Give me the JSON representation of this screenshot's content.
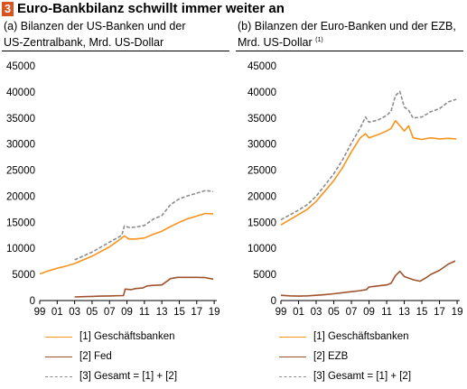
{
  "figure": {
    "number": "3",
    "title": "Euro-Bankbilanz schwillt immer weiter an"
  },
  "colors": {
    "accent": "#d9531e",
    "banks": "#f7941d",
    "central": "#a0522d",
    "total": "#8c8c8c"
  },
  "chart_data": [
    {
      "type": "line",
      "subtitle_line1": "(a) Bilanzen der US-Banken und der",
      "subtitle_line2": "US-Zentralbank, Mrd. US-Dollar",
      "note": "",
      "ylim": [
        0,
        45000
      ],
      "yticks": [
        "0",
        "5000",
        "10000",
        "15000",
        "20000",
        "25000",
        "30000",
        "35000",
        "40000",
        "45000"
      ],
      "xlim": [
        1999,
        2019.3
      ],
      "xticks": [
        "99",
        "01",
        "03",
        "05",
        "07",
        "09",
        "11",
        "13",
        "15",
        "17",
        "19"
      ],
      "series": [
        {
          "name": "[1] Geschäftsbanken",
          "style": "solid",
          "color": "#f7941d",
          "points": [
            [
              1999,
              5100
            ],
            [
              2000,
              5700
            ],
            [
              2001,
              6200
            ],
            [
              2002,
              6600
            ],
            [
              2003,
              7100
            ],
            [
              2004,
              7800
            ],
            [
              2005,
              8500
            ],
            [
              2006,
              9400
            ],
            [
              2007,
              10300
            ],
            [
              2008,
              11500
            ],
            [
              2008.7,
              12400
            ],
            [
              2009.2,
              11800
            ],
            [
              2010,
              11800
            ],
            [
              2011,
              12000
            ],
            [
              2012,
              12700
            ],
            [
              2013,
              13300
            ],
            [
              2014,
              14200
            ],
            [
              2015,
              15000
            ],
            [
              2016,
              15700
            ],
            [
              2017,
              16200
            ],
            [
              2018,
              16700
            ],
            [
              2018.9,
              16600
            ]
          ]
        },
        {
          "name": "[2] Fed",
          "style": "solid",
          "color": "#a0522d",
          "points": [
            [
              2003,
              700
            ],
            [
              2004,
              750
            ],
            [
              2005,
              800
            ],
            [
              2006,
              850
            ],
            [
              2007,
              880
            ],
            [
              2008.6,
              950
            ],
            [
              2008.8,
              2200
            ],
            [
              2009.5,
              2100
            ],
            [
              2010,
              2300
            ],
            [
              2010.8,
              2400
            ],
            [
              2011.3,
              2800
            ],
            [
              2012,
              2900
            ],
            [
              2013,
              3000
            ],
            [
              2013.5,
              3600
            ],
            [
              2014,
              4200
            ],
            [
              2014.8,
              4450
            ],
            [
              2016,
              4450
            ],
            [
              2017,
              4450
            ],
            [
              2018,
              4400
            ],
            [
              2018.9,
              4100
            ]
          ]
        },
        {
          "name": "[3] Gesamt = [1] + [2]",
          "style": "dashed",
          "color": "#8c8c8c",
          "points": [
            [
              2003,
              7800
            ],
            [
              2004,
              8550
            ],
            [
              2005,
              9300
            ],
            [
              2006,
              10250
            ],
            [
              2007,
              11200
            ],
            [
              2008.4,
              12500
            ],
            [
              2008.7,
              14300
            ],
            [
              2009.3,
              14000
            ],
            [
              2010,
              14100
            ],
            [
              2011,
              14400
            ],
            [
              2012,
              15600
            ],
            [
              2013,
              16300
            ],
            [
              2014,
              18400
            ],
            [
              2015,
              19500
            ],
            [
              2016,
              20100
            ],
            [
              2017,
              20600
            ],
            [
              2018,
              21100
            ],
            [
              2018.9,
              20900
            ]
          ]
        }
      ]
    },
    {
      "type": "line",
      "subtitle_line1": "(b) Bilanzen der Euro-Banken und der EZB,",
      "subtitle_line2": "Mrd. US-Dollar",
      "note": "(1)",
      "ylim": [
        0,
        45000
      ],
      "yticks": [
        "0",
        "5000",
        "10000",
        "15000",
        "20000",
        "25000",
        "30000",
        "35000",
        "40000",
        "45000"
      ],
      "xlim": [
        1999,
        2019.3
      ],
      "xticks": [
        "99",
        "01",
        "03",
        "05",
        "07",
        "09",
        "11",
        "13",
        "15",
        "17",
        "19"
      ],
      "series": [
        {
          "name": "[1] Geschäftsbanken",
          "style": "solid",
          "color": "#f7941d",
          "points": [
            [
              1999,
              14500
            ],
            [
              2000,
              15500
            ],
            [
              2001,
              16500
            ],
            [
              2002,
              17500
            ],
            [
              2003,
              19000
            ],
            [
              2004,
              21000
            ],
            [
              2005,
              23000
            ],
            [
              2006,
              25500
            ],
            [
              2007,
              28500
            ],
            [
              2008,
              31200
            ],
            [
              2008.6,
              32000
            ],
            [
              2009,
              31200
            ],
            [
              2010,
              31800
            ],
            [
              2011,
              32500
            ],
            [
              2011.5,
              33000
            ],
            [
              2012,
              34500
            ],
            [
              2012.5,
              33500
            ],
            [
              2013,
              32500
            ],
            [
              2013.5,
              33500
            ],
            [
              2014,
              31200
            ],
            [
              2015,
              30900
            ],
            [
              2016,
              31200
            ],
            [
              2017,
              31000
            ],
            [
              2018,
              31100
            ],
            [
              2018.9,
              31000
            ]
          ]
        },
        {
          "name": "[2] EZB",
          "style": "solid",
          "color": "#a0522d",
          "points": [
            [
              1999,
              1000
            ],
            [
              2000,
              900
            ],
            [
              2001,
              850
            ],
            [
              2002,
              900
            ],
            [
              2003,
              1000
            ],
            [
              2004,
              1150
            ],
            [
              2005,
              1300
            ],
            [
              2006,
              1500
            ],
            [
              2007,
              1700
            ],
            [
              2008,
              1900
            ],
            [
              2008.7,
              2100
            ],
            [
              2009,
              2600
            ],
            [
              2010,
              2800
            ],
            [
              2011,
              3000
            ],
            [
              2011.5,
              3300
            ],
            [
              2012,
              4800
            ],
            [
              2012.5,
              5600
            ],
            [
              2013,
              4600
            ],
            [
              2014,
              4000
            ],
            [
              2014.8,
              3700
            ],
            [
              2015.5,
              4400
            ],
            [
              2016,
              5000
            ],
            [
              2017,
              5800
            ],
            [
              2018,
              7000
            ],
            [
              2018.8,
              7600
            ]
          ]
        },
        {
          "name": "[3] Gesamt = [1] + [2]",
          "style": "dashed",
          "color": "#8c8c8c",
          "points": [
            [
              1999,
              15500
            ],
            [
              2000,
              16400
            ],
            [
              2001,
              17350
            ],
            [
              2002,
              18400
            ],
            [
              2003,
              20000
            ],
            [
              2004,
              22150
            ],
            [
              2005,
              24300
            ],
            [
              2006,
              27000
            ],
            [
              2007,
              30200
            ],
            [
              2008,
              33100
            ],
            [
              2008.6,
              35200
            ],
            [
              2009,
              34200
            ],
            [
              2010,
              34600
            ],
            [
              2011,
              35500
            ],
            [
              2011.5,
              36300
            ],
            [
              2012,
              39300
            ],
            [
              2012.5,
              40100
            ],
            [
              2013,
              37100
            ],
            [
              2013.5,
              36500
            ],
            [
              2014,
              35000
            ],
            [
              2015,
              35200
            ],
            [
              2016,
              36200
            ],
            [
              2017,
              36800
            ],
            [
              2018,
              38100
            ],
            [
              2018.9,
              38600
            ]
          ]
        }
      ]
    }
  ]
}
